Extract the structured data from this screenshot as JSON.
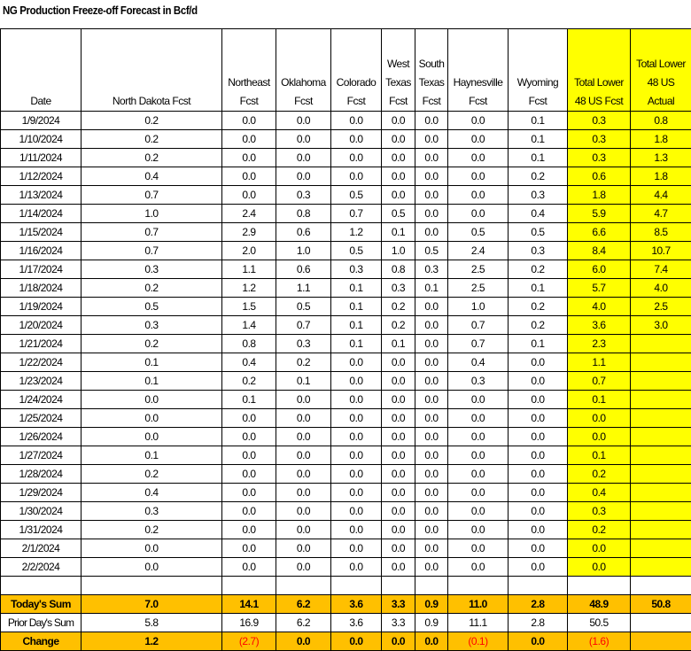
{
  "title": "NG Production Freeze-off Forecast in Bcf/d",
  "headers": [
    "Date",
    "North Dakota Fcst",
    "Northeast Fcst",
    "Oklahoma Fcst",
    "Colorado Fcst",
    "West Texas Fcst",
    "South Texas Fcst",
    "Haynesville Fcst",
    "Wyoming Fcst",
    "Total Lower 48 US Fcst",
    "Total Lower 48 US Actual"
  ],
  "header_lines": [
    [
      "Date"
    ],
    [
      "North Dakota Fcst"
    ],
    [
      "Northeast",
      "Fcst"
    ],
    [
      "Oklahoma",
      "Fcst"
    ],
    [
      "Colorado",
      "Fcst"
    ],
    [
      "West",
      "Texas",
      "Fcst"
    ],
    [
      "South",
      "Texas",
      "Fcst"
    ],
    [
      "Haynesville",
      "Fcst"
    ],
    [
      "Wyoming",
      "Fcst"
    ],
    [
      "Total Lower",
      "48 US Fcst"
    ],
    [
      "Total Lower",
      "48 US",
      "Actual"
    ]
  ],
  "rows": [
    [
      "1/9/2024",
      "0.2",
      "0.0",
      "0.0",
      "0.0",
      "0.0",
      "0.0",
      "0.0",
      "0.1",
      "0.3",
      "0.8"
    ],
    [
      "1/10/2024",
      "0.2",
      "0.0",
      "0.0",
      "0.0",
      "0.0",
      "0.0",
      "0.0",
      "0.1",
      "0.3",
      "1.8"
    ],
    [
      "1/11/2024",
      "0.2",
      "0.0",
      "0.0",
      "0.0",
      "0.0",
      "0.0",
      "0.0",
      "0.1",
      "0.3",
      "1.3"
    ],
    [
      "1/12/2024",
      "0.4",
      "0.0",
      "0.0",
      "0.0",
      "0.0",
      "0.0",
      "0.0",
      "0.2",
      "0.6",
      "1.8"
    ],
    [
      "1/13/2024",
      "0.7",
      "0.0",
      "0.3",
      "0.5",
      "0.0",
      "0.0",
      "0.0",
      "0.3",
      "1.8",
      "4.4"
    ],
    [
      "1/14/2024",
      "1.0",
      "2.4",
      "0.8",
      "0.7",
      "0.5",
      "0.0",
      "0.0",
      "0.4",
      "5.9",
      "4.7"
    ],
    [
      "1/15/2024",
      "0.7",
      "2.9",
      "0.6",
      "1.2",
      "0.1",
      "0.0",
      "0.5",
      "0.5",
      "6.6",
      "8.5"
    ],
    [
      "1/16/2024",
      "0.7",
      "2.0",
      "1.0",
      "0.5",
      "1.0",
      "0.5",
      "2.4",
      "0.3",
      "8.4",
      "10.7"
    ],
    [
      "1/17/2024",
      "0.3",
      "1.1",
      "0.6",
      "0.3",
      "0.8",
      "0.3",
      "2.5",
      "0.2",
      "6.0",
      "7.4"
    ],
    [
      "1/18/2024",
      "0.2",
      "1.2",
      "1.1",
      "0.1",
      "0.3",
      "0.1",
      "2.5",
      "0.1",
      "5.7",
      "4.0"
    ],
    [
      "1/19/2024",
      "0.5",
      "1.5",
      "0.5",
      "0.1",
      "0.2",
      "0.0",
      "1.0",
      "0.2",
      "4.0",
      "2.5"
    ],
    [
      "1/20/2024",
      "0.3",
      "1.4",
      "0.7",
      "0.1",
      "0.2",
      "0.0",
      "0.7",
      "0.2",
      "3.6",
      "3.0"
    ],
    [
      "1/21/2024",
      "0.2",
      "0.8",
      "0.3",
      "0.1",
      "0.1",
      "0.0",
      "0.7",
      "0.1",
      "2.3",
      ""
    ],
    [
      "1/22/2024",
      "0.1",
      "0.4",
      "0.2",
      "0.0",
      "0.0",
      "0.0",
      "0.4",
      "0.0",
      "1.1",
      ""
    ],
    [
      "1/23/2024",
      "0.1",
      "0.2",
      "0.1",
      "0.0",
      "0.0",
      "0.0",
      "0.3",
      "0.0",
      "0.7",
      ""
    ],
    [
      "1/24/2024",
      "0.0",
      "0.1",
      "0.0",
      "0.0",
      "0.0",
      "0.0",
      "0.0",
      "0.0",
      "0.1",
      ""
    ],
    [
      "1/25/2024",
      "0.0",
      "0.0",
      "0.0",
      "0.0",
      "0.0",
      "0.0",
      "0.0",
      "0.0",
      "0.0",
      ""
    ],
    [
      "1/26/2024",
      "0.0",
      "0.0",
      "0.0",
      "0.0",
      "0.0",
      "0.0",
      "0.0",
      "0.0",
      "0.0",
      ""
    ],
    [
      "1/27/2024",
      "0.1",
      "0.0",
      "0.0",
      "0.0",
      "0.0",
      "0.0",
      "0.0",
      "0.0",
      "0.1",
      ""
    ],
    [
      "1/28/2024",
      "0.2",
      "0.0",
      "0.0",
      "0.0",
      "0.0",
      "0.0",
      "0.0",
      "0.0",
      "0.2",
      ""
    ],
    [
      "1/29/2024",
      "0.4",
      "0.0",
      "0.0",
      "0.0",
      "0.0",
      "0.0",
      "0.0",
      "0.0",
      "0.4",
      ""
    ],
    [
      "1/30/2024",
      "0.3",
      "0.0",
      "0.0",
      "0.0",
      "0.0",
      "0.0",
      "0.0",
      "0.0",
      "0.3",
      ""
    ],
    [
      "1/31/2024",
      "0.2",
      "0.0",
      "0.0",
      "0.0",
      "0.0",
      "0.0",
      "0.0",
      "0.0",
      "0.2",
      ""
    ],
    [
      "2/1/2024",
      "0.0",
      "0.0",
      "0.0",
      "0.0",
      "0.0",
      "0.0",
      "0.0",
      "0.0",
      "0.0",
      ""
    ],
    [
      "2/2/2024",
      "0.0",
      "0.0",
      "0.0",
      "0.0",
      "0.0",
      "0.0",
      "0.0",
      "0.0",
      "0.0",
      ""
    ]
  ],
  "summary": {
    "todays_sum": [
      "Today's Sum",
      "7.0",
      "14.1",
      "6.2",
      "3.6",
      "3.3",
      "0.9",
      "11.0",
      "2.8",
      "48.9",
      "50.8"
    ],
    "prior_day_sum": [
      "Prior Day's Sum",
      "5.8",
      "16.9",
      "6.2",
      "3.6",
      "3.3",
      "0.9",
      "11.1",
      "2.8",
      "50.5",
      ""
    ],
    "change": [
      "Change",
      "1.2",
      "(2.7)",
      "0.0",
      "0.0",
      "0.0",
      "0.0",
      "(0.1)",
      "0.0",
      "(1.6)",
      ""
    ]
  },
  "colors": {
    "highlight_yellow": "#ffff00",
    "summary_orange": "#ffc000",
    "negative_red": "#ff0000"
  }
}
